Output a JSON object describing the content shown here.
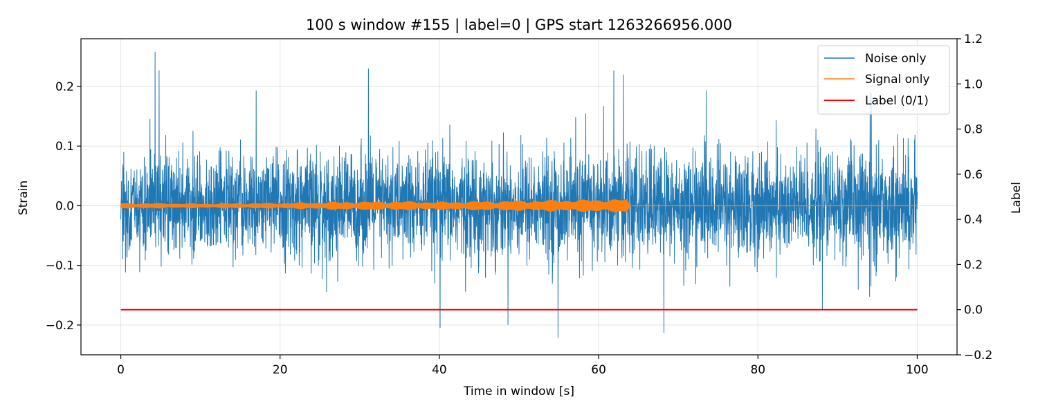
{
  "chart_data": {
    "type": "line",
    "title": "100 s window #155 | label=0 | GPS start 1263266956.000",
    "xlabel": "Time in window [s]",
    "ylabel": "Strain",
    "y2label": "Label",
    "xlim": [
      -5,
      105
    ],
    "ylim": [
      -0.25,
      0.28
    ],
    "y2lim": [
      -0.2,
      1.2
    ],
    "xticks": [
      0,
      20,
      40,
      60,
      80,
      100
    ],
    "yticks": [
      -0.2,
      -0.1,
      0.0,
      0.1,
      0.2
    ],
    "y2ticks": [
      -0.2,
      0.0,
      0.2,
      0.4,
      0.6,
      0.8,
      1.0,
      1.2
    ],
    "xtick_labels": [
      "0",
      "20",
      "40",
      "60",
      "80",
      "100"
    ],
    "ytick_labels": [
      "−0.2",
      "−0.1",
      "0.0",
      "0.1",
      "0.2"
    ],
    "y2tick_labels": [
      "−0.2",
      "0.0",
      "0.2",
      "0.4",
      "0.6",
      "0.8",
      "1.0",
      "1.2"
    ],
    "grid": true,
    "legend_position": "top-right",
    "series": [
      {
        "name": "Noise only",
        "color": "#1f77b4",
        "axis": "left",
        "x_range": [
          0,
          100
        ],
        "typical_amplitude": 0.07,
        "peak_max": 0.258,
        "peak_min": -0.222,
        "notable_peaks": [
          [
            4.3,
            0.258
          ],
          [
            4.8,
            0.227
          ],
          [
            31.1,
            0.23
          ],
          [
            40.1,
            -0.205
          ],
          [
            54.9,
            -0.222
          ],
          [
            61.9,
            0.227
          ],
          [
            63.1,
            0.22
          ],
          [
            68.2,
            -0.213
          ],
          [
            94.1,
            0.19
          ]
        ]
      },
      {
        "name": "Signal only",
        "color": "#ff7f0e",
        "axis": "left",
        "x_range": [
          0,
          100
        ],
        "envelope": [
          [
            0,
            0.005
          ],
          [
            10,
            0.004
          ],
          [
            20,
            0.005
          ],
          [
            27,
            0.007
          ],
          [
            35,
            0.008
          ],
          [
            40,
            0.007
          ],
          [
            45,
            0.008
          ],
          [
            50,
            0.009
          ],
          [
            55,
            0.01
          ],
          [
            60,
            0.011
          ],
          [
            63.5,
            0.012
          ],
          [
            64,
            0.0
          ],
          [
            100,
            0.0
          ]
        ],
        "merger_time": 64.0
      },
      {
        "name": "Label (0/1)",
        "color": "#ff0000",
        "axis": "right",
        "x": [
          0,
          100
        ],
        "values": [
          0,
          0
        ]
      }
    ]
  }
}
